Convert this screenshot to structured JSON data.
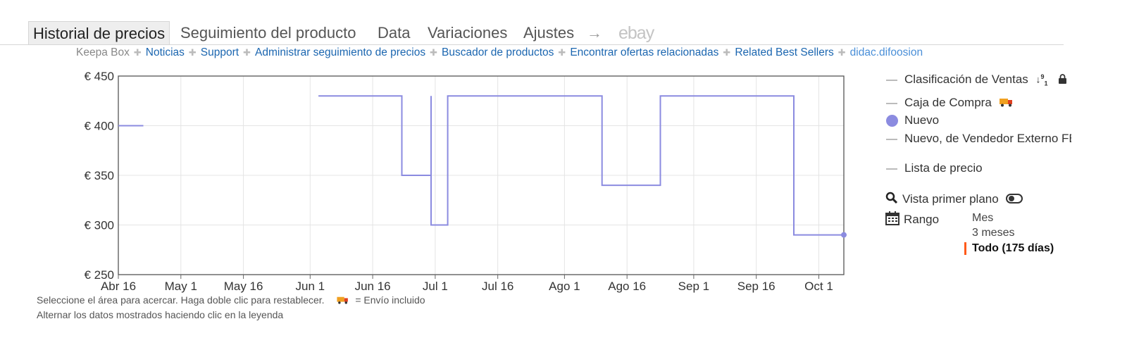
{
  "tabs": [
    {
      "label": "Historial de precios",
      "active": true
    },
    {
      "label": "Seguimiento del producto"
    },
    {
      "label": "Data"
    },
    {
      "label": "Variaciones"
    },
    {
      "label": "Ajustes"
    },
    {
      "label": "→"
    },
    {
      "label": "ebay"
    }
  ],
  "links": [
    "Keepa Box",
    "Noticias",
    "Support",
    "Administrar seguimiento de precios",
    "Buscador de productos",
    "Encontrar ofertas relacionadas",
    "Related Best Sellers",
    "didac.difoosion"
  ],
  "legend": {
    "sales_rank": "Clasificación de Ventas",
    "buy_box": "Caja de Compra",
    "new": "Nuevo",
    "new_fba": "Nuevo, de Vendedor Externo FBA",
    "list_price": "Lista de precio",
    "close_view": "Vista primer plano",
    "range_label": "Rango",
    "range_options": [
      "Mes",
      "3 meses",
      "Todo (175 días)"
    ],
    "range_selected": 2
  },
  "notes": {
    "line1_text": "Seleccione el área para acercar. Haga doble clic para restablecer.",
    "shipping_note": "= Envío incluido",
    "line2": "Alternar los datos mostrados haciendo clic en la leyenda"
  },
  "colors": {
    "new_series": "#8b8be0",
    "accent": "#ff5a1a",
    "link": "#1b66b0"
  },
  "icons": [
    "plus-separator-icon",
    "sort-icon",
    "lock-icon",
    "truck-icon",
    "search-icon",
    "toggle-icon",
    "calendar-icon"
  ],
  "chart_data": {
    "type": "line",
    "step": true,
    "series": [
      {
        "name": "Nuevo",
        "points": [
          [
            "2023-04-16",
            400
          ],
          [
            "2023-04-22",
            400
          ],
          [
            "2023-04-22",
            null
          ],
          [
            "2023-06-03",
            430
          ],
          [
            "2023-06-23",
            430
          ],
          [
            "2023-06-23",
            350
          ],
          [
            "2023-06-30",
            350
          ],
          [
            "2023-06-30",
            430
          ],
          [
            "2023-06-30",
            300
          ],
          [
            "2023-07-04",
            300
          ],
          [
            "2023-07-04",
            430
          ],
          [
            "2023-08-10",
            430
          ],
          [
            "2023-08-10",
            340
          ],
          [
            "2023-08-24",
            340
          ],
          [
            "2023-08-24",
            430
          ],
          [
            "2023-09-25",
            430
          ],
          [
            "2023-09-25",
            290
          ],
          [
            "2023-10-07",
            290
          ]
        ]
      }
    ],
    "x_range": [
      "2023-04-16",
      "2023-10-07"
    ],
    "x_ticks": [
      {
        "date": "2023-04-16",
        "label": "Abr 16"
      },
      {
        "date": "2023-05-01",
        "label": "May 1"
      },
      {
        "date": "2023-05-16",
        "label": "May 16"
      },
      {
        "date": "2023-06-01",
        "label": "Jun 1"
      },
      {
        "date": "2023-06-16",
        "label": "Jun 16"
      },
      {
        "date": "2023-07-01",
        "label": "Jul 1"
      },
      {
        "date": "2023-07-16",
        "label": "Jul 16"
      },
      {
        "date": "2023-08-01",
        "label": "Ago 1"
      },
      {
        "date": "2023-08-16",
        "label": "Ago 16"
      },
      {
        "date": "2023-09-01",
        "label": "Sep 1"
      },
      {
        "date": "2023-09-16",
        "label": "Sep 16"
      },
      {
        "date": "2023-10-01",
        "label": "Oct 1"
      }
    ],
    "y_ticks": [
      {
        "value": 250,
        "label": "€ 250"
      },
      {
        "value": 300,
        "label": "€ 300"
      },
      {
        "value": 350,
        "label": "€ 350"
      },
      {
        "value": 400,
        "label": "€ 400"
      },
      {
        "value": 450,
        "label": "€ 450"
      }
    ],
    "ylim": [
      250,
      450
    ],
    "grid": true,
    "legend_position": "right"
  }
}
